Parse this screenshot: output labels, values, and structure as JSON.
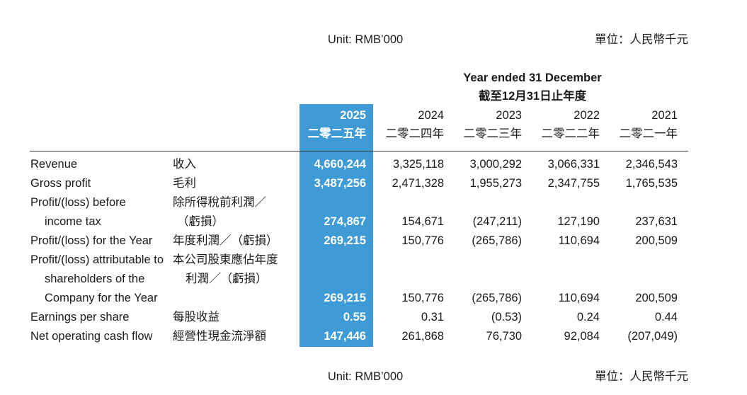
{
  "unit_top": {
    "en": "Unit: RMB’000",
    "zh": "單位：人民幣千元"
  },
  "header": {
    "title": "Year ended 31 December",
    "title_zh": "截至12月31日止年度"
  },
  "columns": [
    {
      "year": "2025",
      "year_zh": "二零二五年"
    },
    {
      "year": "2024",
      "year_zh": "二零二四年"
    },
    {
      "year": "2023",
      "year_zh": "二零二三年"
    },
    {
      "year": "2022",
      "year_zh": "二零二二年"
    },
    {
      "year": "2021",
      "year_zh": "二零二一年"
    }
  ],
  "rows": [
    {
      "en": [
        "Revenue"
      ],
      "zh": [
        "收入"
      ],
      "values": [
        "4,660,244",
        "3,325,118",
        "3,000,292",
        "3,066,331",
        "2,346,543"
      ]
    },
    {
      "en": [
        "Gross profit"
      ],
      "zh": [
        "毛利"
      ],
      "values": [
        "3,487,256",
        "2,471,328",
        "1,955,273",
        "2,347,755",
        "1,765,535"
      ]
    },
    {
      "en": [
        "Profit/(loss) before",
        "income tax"
      ],
      "zh": [
        "除所得稅前利潤／",
        "（虧損）"
      ],
      "values": [
        "274,867",
        "154,671",
        "(247,211)",
        "127,190",
        "237,631"
      ]
    },
    {
      "en": [
        "Profit/(loss) for the Year"
      ],
      "zh": [
        "年度利潤／（虧損）"
      ],
      "values": [
        "269,215",
        "150,776",
        "(265,786)",
        "110,694",
        "200,509"
      ]
    },
    {
      "en": [
        "Profit/(loss) attributable to",
        "shareholders of the",
        "Company for the Year"
      ],
      "zh": [
        "本公司股東應佔年度",
        "利潤／（虧損）"
      ],
      "values": [
        "269,215",
        "150,776",
        "(265,786)",
        "110,694",
        "200,509"
      ]
    },
    {
      "en": [
        "Earnings per share"
      ],
      "zh": [
        "每股收益"
      ],
      "values": [
        "0.55",
        "0.31",
        "(0.53)",
        "0.24",
        "0.44"
      ]
    },
    {
      "en": [
        "Net operating cash flow"
      ],
      "zh": [
        "經營性現金流淨額"
      ],
      "values": [
        "147,446",
        "261,868",
        "76,730",
        "92,084",
        "(207,049)"
      ]
    }
  ],
  "unit_bottom": {
    "en": "Unit: RMB’000",
    "zh": "單位：人民幣千元"
  }
}
